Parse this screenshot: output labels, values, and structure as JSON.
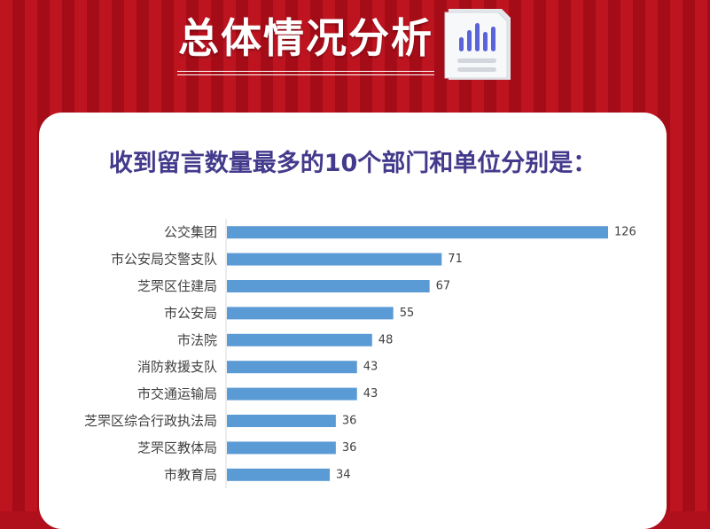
{
  "header": {
    "title": "总体情况分析",
    "icon": "bar-chart-document-icon"
  },
  "colors": {
    "background": "#b0101c",
    "bar": "#5b9bd5",
    "subtitle": "#433a8c"
  },
  "chart_data": {
    "type": "bar",
    "orientation": "horizontal",
    "title": "收到留言数量最多的10个部门和单位分别是：",
    "categories": [
      "公交集团",
      "市公安局交警支队",
      "芝罘区住建局",
      "市公安局",
      "市法院",
      "消防救援支队",
      "市交通运输局",
      "芝罘区综合行政执法局",
      "芝罘区教体局",
      "市教育局"
    ],
    "values": [
      126,
      71,
      67,
      55,
      48,
      43,
      43,
      36,
      36,
      34
    ],
    "xlim": [
      0,
      126
    ],
    "grid": false,
    "legend": "none",
    "data_labels": true
  }
}
